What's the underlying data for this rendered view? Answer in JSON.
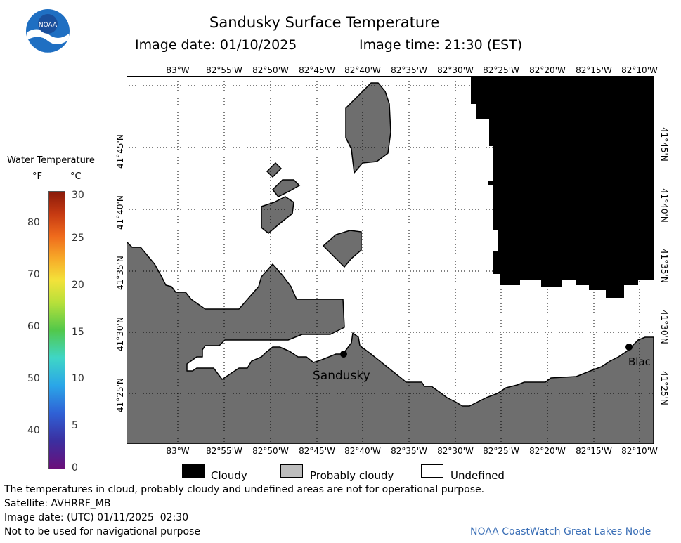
{
  "header": {
    "title": "Sandusky Surface Temperature",
    "image_date_label": "Image date: 01/10/2025",
    "image_time_label": "Image time: 21:30 (EST)"
  },
  "logo": {
    "text": "NOAA",
    "icon": "noaa-logo"
  },
  "colorbar": {
    "title": "Water Temperature",
    "unit_f": "°F",
    "unit_c": "°C",
    "f_ticks": [
      "80",
      "70",
      "60",
      "50",
      "40"
    ],
    "c_ticks": [
      "30",
      "25",
      "20",
      "15",
      "10",
      "5",
      "0"
    ]
  },
  "map": {
    "lon_labels": [
      "83°W",
      "82°55'W",
      "82°50'W",
      "82°45'W",
      "82°40'W",
      "82°35'W",
      "82°30'W",
      "82°25'W",
      "82°20'W",
      "82°15'W",
      "82°10'W"
    ],
    "lat_labels": [
      "41°45'N",
      "41°40'N",
      "41°35'N",
      "41°30'N",
      "41°25'N"
    ],
    "places": [
      {
        "name": "Sandusky"
      },
      {
        "name": "Blac"
      }
    ],
    "colors": {
      "land": "#6e6e6e",
      "cloud": "#000000",
      "undefined": "#ffffff"
    }
  },
  "legend": {
    "items": [
      {
        "label": "Cloudy",
        "color": "#000000"
      },
      {
        "label": "Probably cloudy",
        "color": "#bdbdbd"
      },
      {
        "label": "Undefined",
        "color": "#ffffff"
      }
    ]
  },
  "footer": {
    "disclaimer": "The temperatures in cloud, probably cloudy and undefined areas are not for operational purpose.",
    "satellite": "Satellite: AVHRRF_MB",
    "utc_date": "Image date: (UTC) 01/11/2025  02:30",
    "nav_warning": "Not to be used for navigational purpose",
    "credit": "NOAA CoastWatch Great Lakes Node"
  }
}
